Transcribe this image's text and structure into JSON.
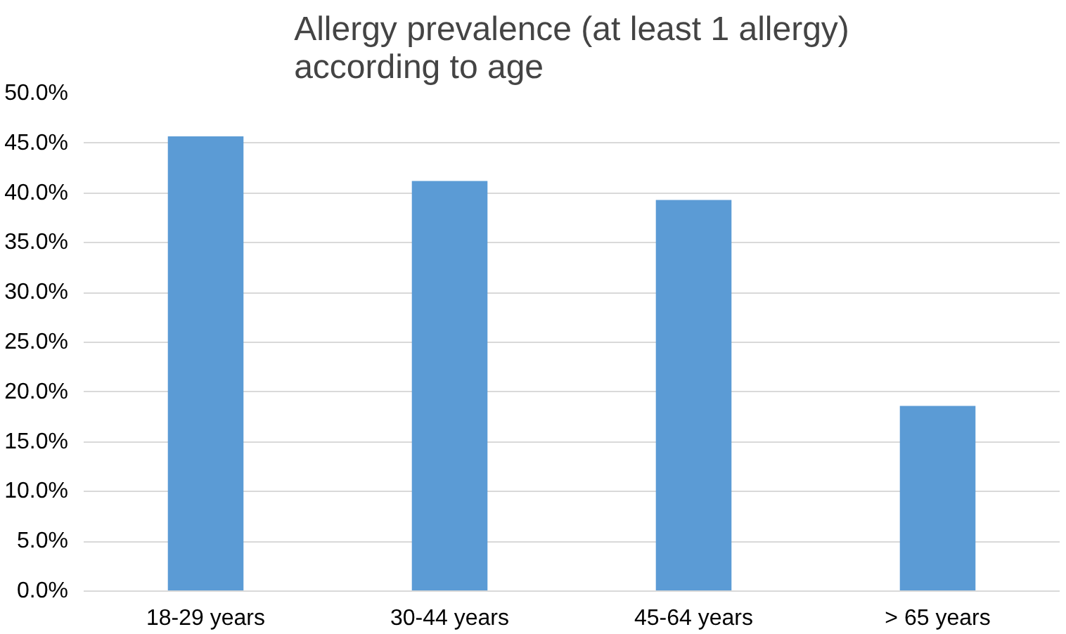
{
  "chart_data": {
    "type": "bar",
    "title": "Allergy prevalence (at least 1 allergy) according to age",
    "categories": [
      "18-29 years",
      "30-44 years",
      "45-64 years",
      "> 65 years"
    ],
    "values": [
      45.7,
      41.2,
      39.3,
      18.6
    ],
    "color": "#5b9bd5",
    "ylim": [
      0,
      50
    ],
    "yticks": [
      {
        "value": 0,
        "label": "0.0%"
      },
      {
        "value": 5,
        "label": "5.0%"
      },
      {
        "value": 10,
        "label": "10.0%"
      },
      {
        "value": 15,
        "label": "15.0%"
      },
      {
        "value": 20,
        "label": "20.0%"
      },
      {
        "value": 25,
        "label": "25.0%"
      },
      {
        "value": 30,
        "label": "30.0%"
      },
      {
        "value": 35,
        "label": "35.0%"
      },
      {
        "value": 40,
        "label": "40.0%"
      },
      {
        "value": 45,
        "label": "45.0%"
      },
      {
        "value": 50,
        "label": "50.0%"
      }
    ],
    "grid": "y"
  }
}
